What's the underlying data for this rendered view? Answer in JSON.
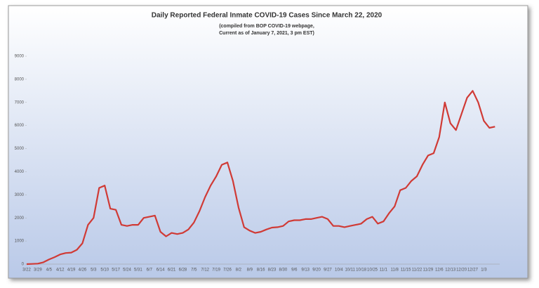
{
  "chart_data": {
    "type": "line",
    "title": "Daily Reported Federal Inmate COVID-19 Cases Since March 22, 2020",
    "subtitle": [
      "(compiled from BOP COVID-19 webpage,",
      "Current as of January 7, 2021, 3 pm EST)"
    ],
    "categories": [
      "3/22",
      null,
      "3/29",
      null,
      "4/5",
      null,
      "4/12",
      null,
      "4/19",
      null,
      "4/26",
      null,
      "5/3",
      null,
      "5/10",
      null,
      "5/17",
      null,
      "5/24",
      null,
      "5/31",
      null,
      "6/7",
      null,
      "6/14",
      null,
      "6/21",
      null,
      "6/28",
      null,
      "7/5",
      null,
      "7/12",
      null,
      "7/19",
      null,
      "7/26",
      null,
      "8/2",
      null,
      "8/9",
      null,
      "8/16",
      null,
      "8/23",
      null,
      "8/30",
      null,
      "9/6",
      null,
      "9/13",
      null,
      "9/20",
      null,
      "9/27",
      null,
      "10/4",
      null,
      "10/11",
      null,
      "10/18",
      null,
      "10/25",
      null,
      "11/1",
      null,
      "11/8",
      null,
      "11/15",
      null,
      "11/22",
      null,
      "11/29",
      null,
      "12/6",
      null,
      "12/13",
      null,
      "12/20",
      null,
      "12/27",
      null,
      "1/3",
      null,
      null
    ],
    "series": [
      {
        "color": "#d03a35",
        "values": [
          0,
          10,
          20,
          80,
          200,
          300,
          420,
          480,
          500,
          620,
          900,
          1700,
          2000,
          3300,
          3400,
          2400,
          2350,
          1700,
          1650,
          1700,
          1700,
          2000,
          2050,
          2100,
          1400,
          1200,
          1350,
          1300,
          1350,
          1500,
          1800,
          2300,
          2900,
          3400,
          3800,
          4300,
          4400,
          3600,
          2450,
          1600,
          1450,
          1350,
          1400,
          1500,
          1580,
          1600,
          1650,
          1850,
          1900,
          1900,
          1950,
          1950,
          2000,
          2050,
          1950,
          1650,
          1650,
          1600,
          1650,
          1700,
          1750,
          1950,
          2050,
          1750,
          1850,
          2200,
          2500,
          3200,
          3300,
          3600,
          3800,
          4300,
          4700,
          4800,
          5500,
          7000,
          6100,
          5800,
          6500,
          7200,
          7500,
          7000,
          6200,
          5900,
          5950
        ]
      }
    ],
    "ylim": [
      0,
      9000
    ],
    "yticks": [
      0,
      1000,
      2000,
      3000,
      4000,
      5000,
      6000,
      7000,
      8000,
      9000
    ]
  }
}
